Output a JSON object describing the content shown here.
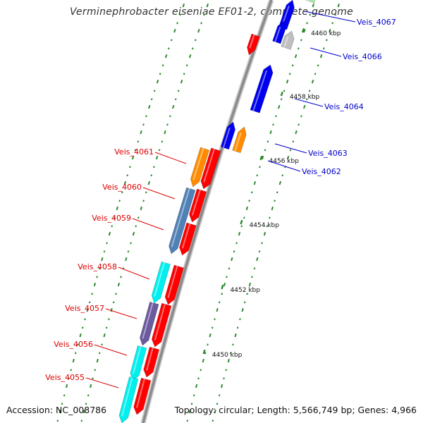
{
  "title": "Verminephrobacter eiseniae EF01-2, complete genome",
  "accession": "Accession: NC_008786",
  "topology": "Topology: circular; Length: 5,566,749 bp; Genes: 4,966",
  "colors": {
    "backbone": "#8a8a8a",
    "tick": "#2e8b2e",
    "label_plus": "#0000cc",
    "label_minus": "#dd0000",
    "red": "#ff0000",
    "orange": "#ff8c00",
    "blue": "#0000ee",
    "grey": "#bfbfbf",
    "steelblue": "#4f80b6",
    "cyan": "#00f0f0",
    "purple": "#6b5a9e",
    "green": "#a8e8a8"
  },
  "kbp_ticks": [
    {
      "label": "4450 kbp",
      "kbp": 4450
    },
    {
      "label": "4452 kbp",
      "kbp": 4452
    },
    {
      "label": "4454 kbp",
      "kbp": 4454
    },
    {
      "label": "4456 kbp",
      "kbp": 4456
    },
    {
      "label": "4458 kbp",
      "kbp": 4458
    },
    {
      "label": "4460 kbp",
      "kbp": 4460
    }
  ],
  "plus_labels": [
    "Veis_4067",
    "Veis_4066",
    "Veis_4064",
    "Veis_4063",
    "Veis_4062"
  ],
  "minus_labels": [
    "Veis_4061",
    "Veis_4060",
    "Veis_4059",
    "Veis_4058",
    "Veis_4057",
    "Veis_4056",
    "Veis_4055"
  ],
  "features": [
    {
      "name": "Veis_4067",
      "strand": "+",
      "color": "green"
    },
    {
      "name": "Veis_4066",
      "strand": "+",
      "color": "grey"
    },
    {
      "name": "Veis_4064",
      "strand": "+",
      "color": "blue"
    },
    {
      "name": "Veis_4063",
      "strand": "+",
      "color": "orange"
    },
    {
      "name": "Veis_4062",
      "strand": "+",
      "color": "blue"
    },
    {
      "name": "Veis_4061",
      "strand": "-",
      "color": "orange"
    },
    {
      "name": "Veis_4060",
      "strand": "-",
      "color": "steelblue"
    },
    {
      "name": "Veis_4059",
      "strand": "-",
      "color": "steelblue"
    },
    {
      "name": "Veis_4058",
      "strand": "-",
      "color": "cyan"
    },
    {
      "name": "Veis_4057",
      "strand": "-",
      "color": "purple"
    },
    {
      "name": "Veis_4056",
      "strand": "-",
      "color": "cyan"
    },
    {
      "name": "Veis_4055",
      "strand": "-",
      "color": "cyan"
    }
  ]
}
